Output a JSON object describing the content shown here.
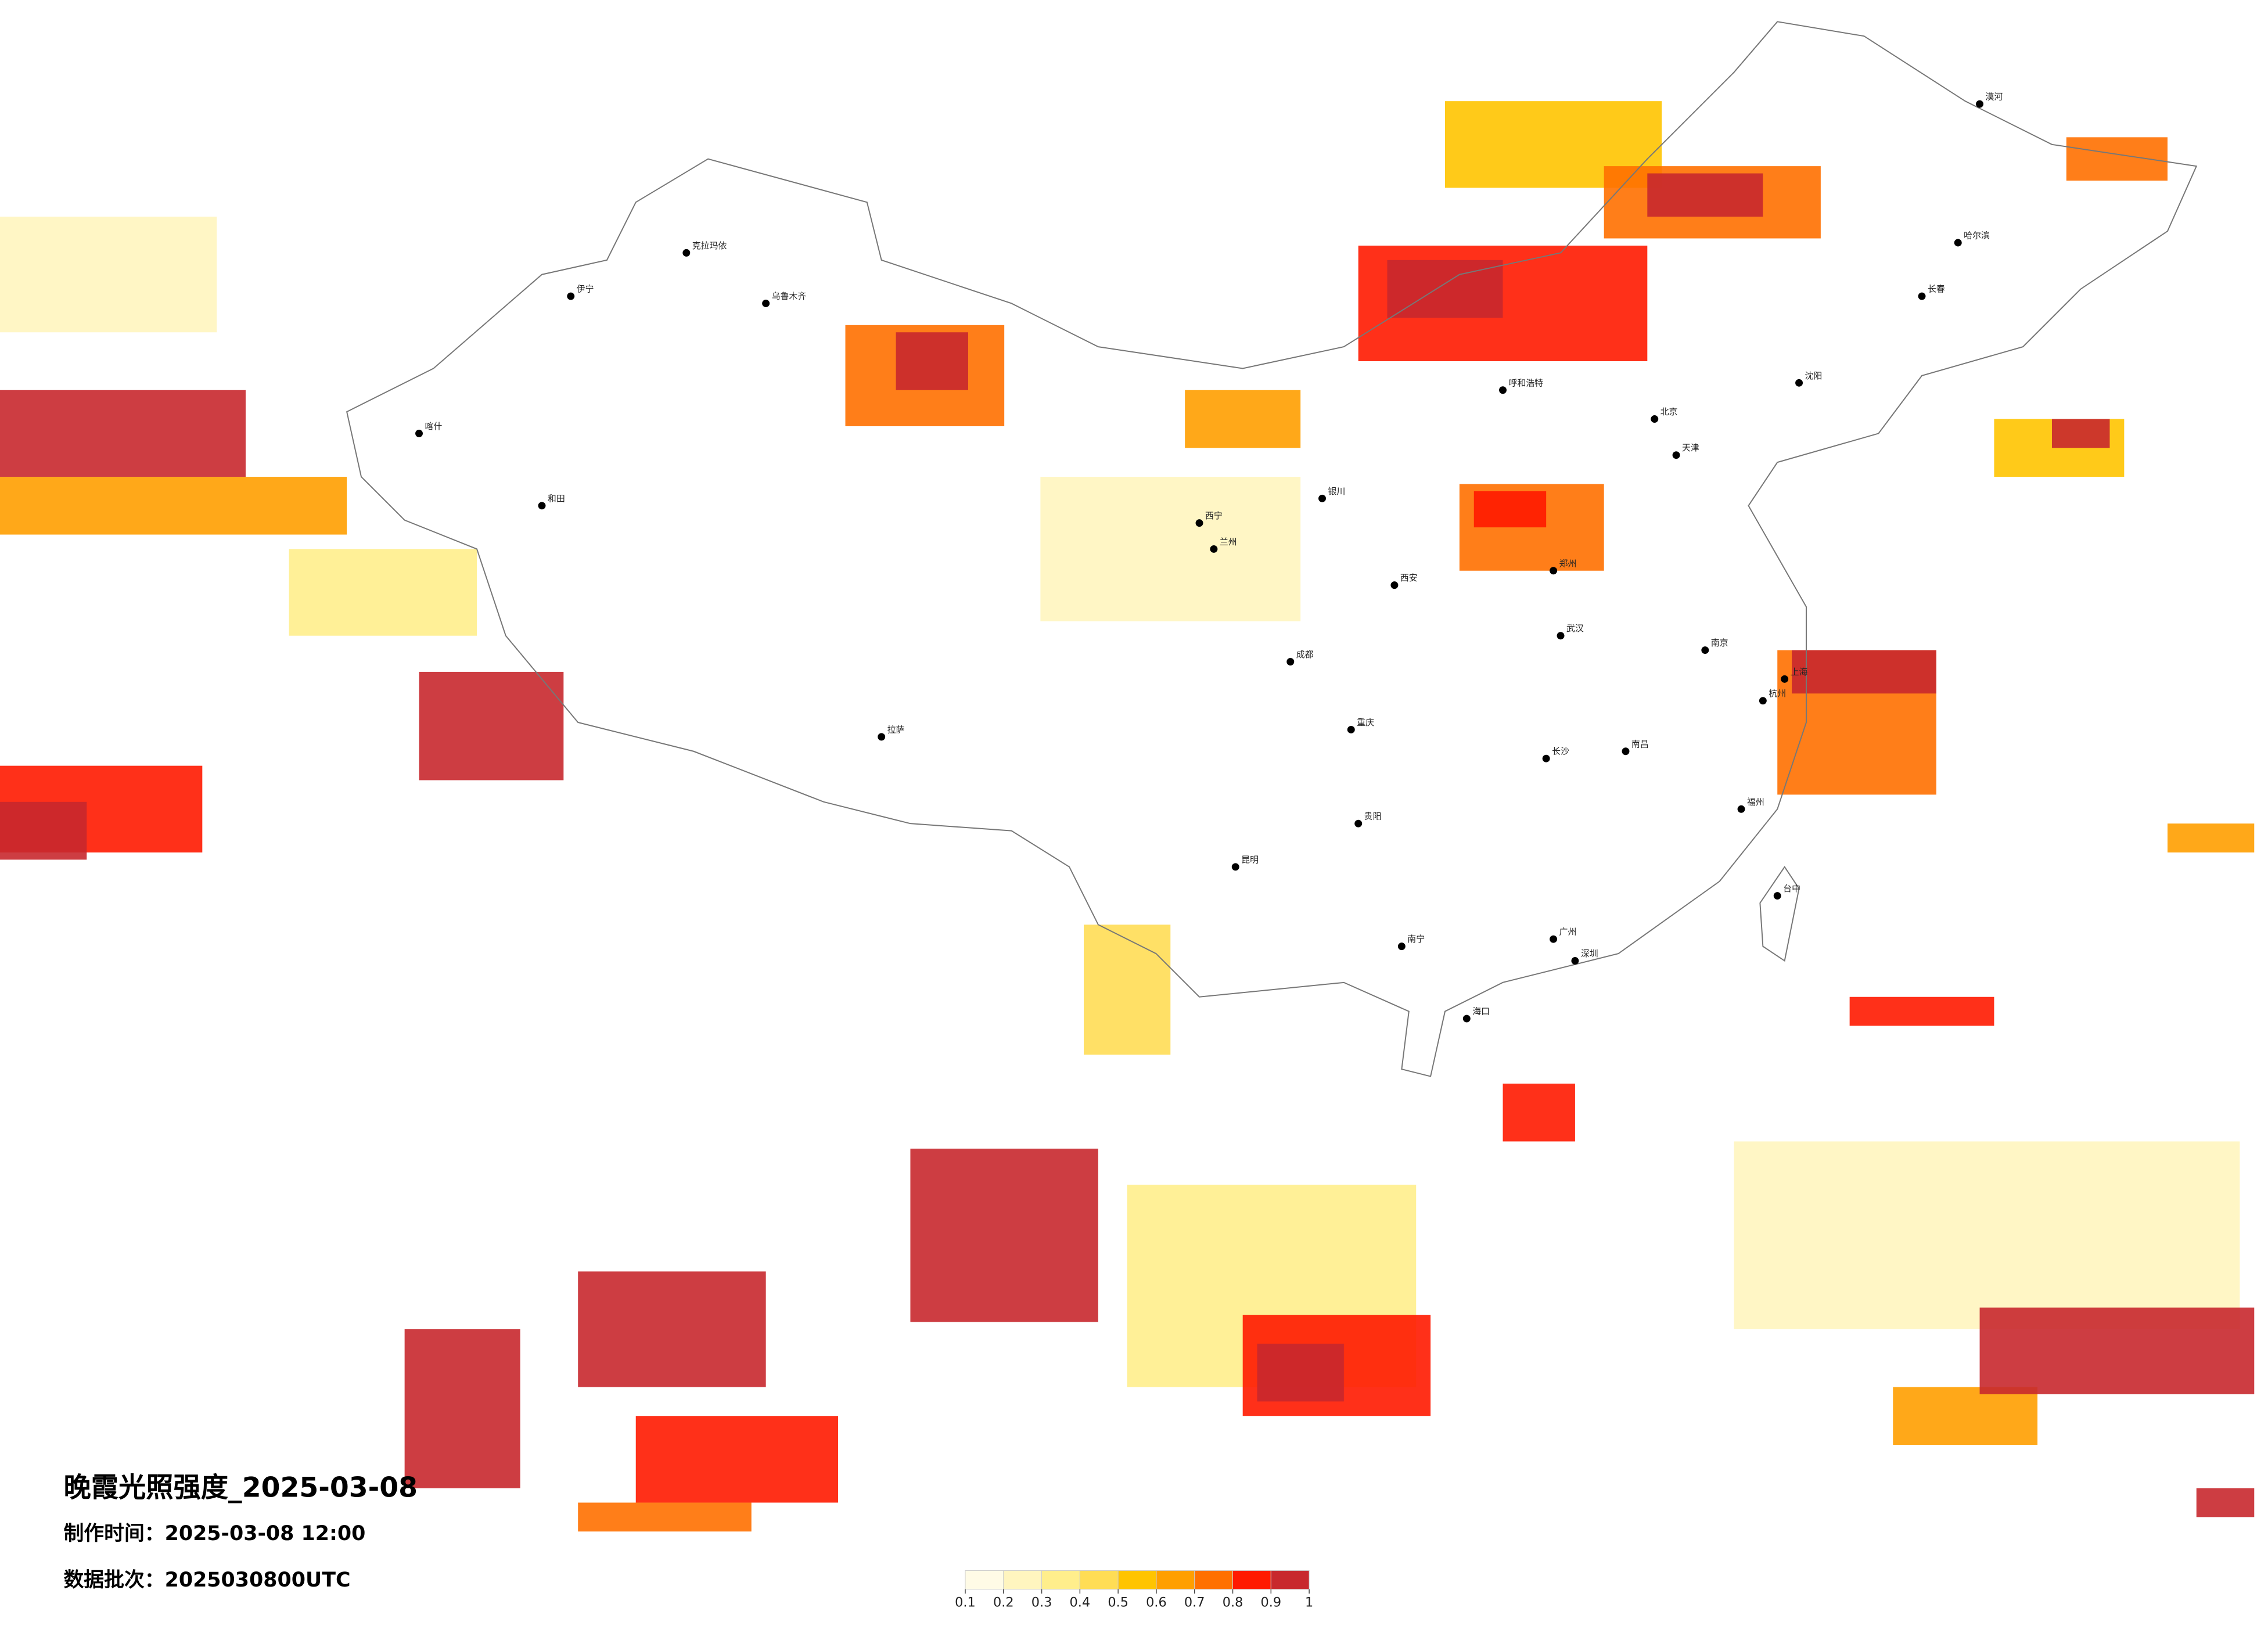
{
  "map": {
    "title": "晚霞光照强度_2025-03-08",
    "made_time": "制作时间：2025-03-08 12:00",
    "data_batch": "数据批次：2025030800UTC",
    "colorbar": {
      "colors": [
        "#fffbe6",
        "#fff5bf",
        "#ffee8c",
        "#ffdd55",
        "#ffc400",
        "#ff9f00",
        "#ff7000",
        "#ff1a00",
        "#c8282d"
      ],
      "lim": [
        0.1,
        1
      ],
      "ticks": [
        0.1,
        0.2,
        0.3,
        0.4,
        0.5,
        0.6,
        0.7,
        0.8,
        0.9,
        1
      ]
    },
    "cities": [
      "北京",
      "天津",
      "上海",
      "广州",
      "深圳",
      "重庆",
      "成都",
      "武汉",
      "西安",
      "郑州",
      "乌鲁木齐",
      "拉萨",
      "昆明",
      "哈尔滨",
      "长春",
      "沈阳",
      "呼和浩特",
      "兰州",
      "银川",
      "西宁",
      "南宁",
      "海口",
      "福州",
      "杭州",
      "南京",
      "长沙",
      "南昌",
      "贵阳",
      "台中",
      "喀什",
      "和田",
      "克拉玛依",
      "伊宁",
      "漠河"
    ]
  }
}
